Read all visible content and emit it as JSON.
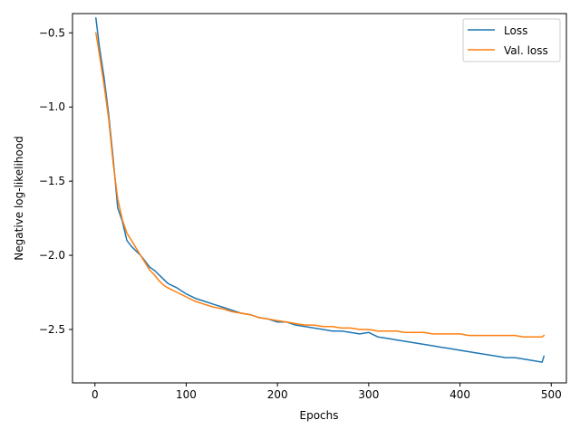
{
  "chart_data": {
    "type": "line",
    "xlabel": "Epochs",
    "ylabel": "Negative log-likelihood",
    "xlim": [
      -24.6,
      516.6
    ],
    "ylim": [
      -2.86,
      -0.37
    ],
    "xticks": [
      0,
      100,
      200,
      300,
      400,
      500
    ],
    "yticks": [
      -0.5,
      -1.0,
      -1.5,
      -2.0,
      -2.5
    ],
    "xtick_labels": [
      "0",
      "100",
      "200",
      "300",
      "400",
      "500"
    ],
    "ytick_labels": [
      "−0.5",
      "−1.0",
      "−1.5",
      "−2.0",
      "−2.5"
    ],
    "grid": false,
    "legend_position": "top-right",
    "series": [
      {
        "name": "Loss",
        "color": "#1f77b4",
        "x": [
          1,
          5,
          10,
          15,
          20,
          25,
          30,
          35,
          40,
          45,
          50,
          55,
          60,
          65,
          70,
          75,
          80,
          90,
          100,
          110,
          120,
          130,
          140,
          150,
          160,
          170,
          180,
          190,
          200,
          210,
          220,
          230,
          240,
          250,
          260,
          270,
          280,
          290,
          300,
          310,
          320,
          330,
          340,
          350,
          360,
          370,
          380,
          390,
          400,
          410,
          420,
          430,
          440,
          450,
          460,
          470,
          480,
          490,
          492
        ],
        "y": [
          -0.4,
          -0.6,
          -0.8,
          -1.05,
          -1.35,
          -1.68,
          -1.77,
          -1.9,
          -1.94,
          -1.97,
          -2.0,
          -2.04,
          -2.08,
          -2.1,
          -2.13,
          -2.16,
          -2.19,
          -2.22,
          -2.26,
          -2.29,
          -2.31,
          -2.33,
          -2.35,
          -2.37,
          -2.39,
          -2.4,
          -2.42,
          -2.43,
          -2.45,
          -2.45,
          -2.47,
          -2.48,
          -2.49,
          -2.5,
          -2.51,
          -2.51,
          -2.52,
          -2.53,
          -2.52,
          -2.55,
          -2.56,
          -2.57,
          -2.58,
          -2.59,
          -2.6,
          -2.61,
          -2.62,
          -2.63,
          -2.64,
          -2.65,
          -2.66,
          -2.67,
          -2.68,
          -2.69,
          -2.69,
          -2.7,
          -2.71,
          -2.72,
          -2.68
        ]
      },
      {
        "name": "Val. loss",
        "color": "#ff7f0e",
        "x": [
          1,
          5,
          10,
          15,
          20,
          25,
          30,
          35,
          40,
          45,
          50,
          55,
          60,
          65,
          70,
          75,
          80,
          90,
          100,
          110,
          120,
          130,
          140,
          150,
          160,
          170,
          180,
          190,
          200,
          210,
          220,
          230,
          240,
          250,
          260,
          270,
          280,
          290,
          300,
          310,
          320,
          330,
          340,
          350,
          360,
          370,
          380,
          390,
          400,
          410,
          420,
          430,
          440,
          450,
          460,
          470,
          480,
          490,
          492
        ],
        "y": [
          -0.5,
          -0.65,
          -0.85,
          -1.08,
          -1.38,
          -1.62,
          -1.76,
          -1.85,
          -1.9,
          -1.95,
          -2.0,
          -2.05,
          -2.1,
          -2.13,
          -2.17,
          -2.2,
          -2.22,
          -2.25,
          -2.28,
          -2.31,
          -2.33,
          -2.35,
          -2.36,
          -2.38,
          -2.39,
          -2.4,
          -2.42,
          -2.43,
          -2.44,
          -2.45,
          -2.46,
          -2.47,
          -2.47,
          -2.48,
          -2.48,
          -2.49,
          -2.49,
          -2.5,
          -2.5,
          -2.51,
          -2.51,
          -2.51,
          -2.52,
          -2.52,
          -2.52,
          -2.53,
          -2.53,
          -2.53,
          -2.53,
          -2.54,
          -2.54,
          -2.54,
          -2.54,
          -2.54,
          -2.54,
          -2.55,
          -2.55,
          -2.55,
          -2.54
        ]
      }
    ]
  }
}
